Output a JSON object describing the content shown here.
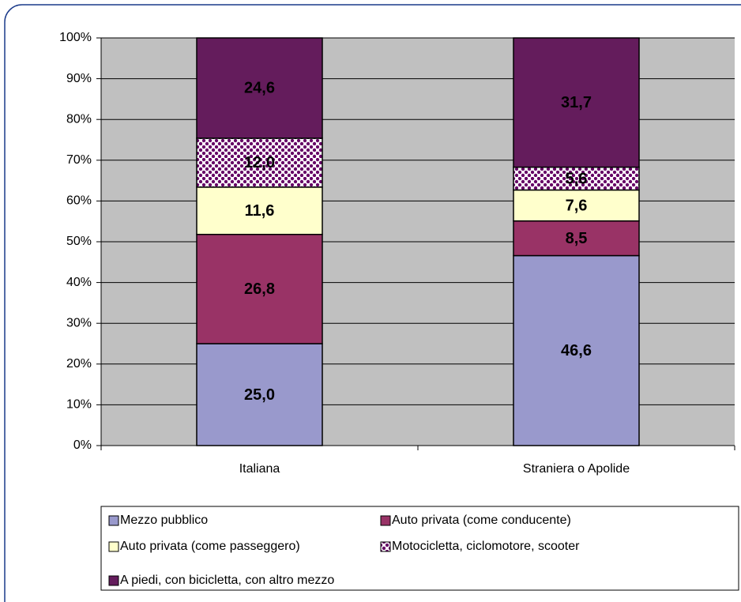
{
  "chart_data": {
    "type": "stacked_bar",
    "categories": [
      "Italiana",
      "Straniera o Apolide"
    ],
    "series": [
      {
        "name": "Mezzo pubblico",
        "color": "#9999cc",
        "values": [
          25.0,
          46.6
        ],
        "value_labels": [
          "25,0",
          "46,6"
        ]
      },
      {
        "name": "Auto privata (come conducente)",
        "color": "#993366",
        "values": [
          26.8,
          8.5
        ],
        "value_labels": [
          "26,8",
          "8,5"
        ]
      },
      {
        "name": "Auto privata (come passeggero)",
        "color": "#ffffcc",
        "values": [
          11.6,
          7.6
        ],
        "value_labels": [
          "11,6",
          "7,6"
        ]
      },
      {
        "name": "Motocicletta, ciclomotore, scooter",
        "color": "#660066",
        "pattern": "dots",
        "values": [
          12.0,
          5.6
        ],
        "value_labels": [
          "12,0",
          "5,6"
        ]
      },
      {
        "name": "A piedi, con bicicletta, con altro mezzo",
        "color": "#641c5c",
        "values": [
          24.6,
          31.7
        ],
        "value_labels": [
          "24,6",
          "31,7"
        ]
      }
    ],
    "ylim": [
      0,
      100
    ],
    "yticks": [
      {
        "value": 0,
        "label": "0%"
      },
      {
        "value": 10,
        "label": "10%"
      },
      {
        "value": 20,
        "label": "20%"
      },
      {
        "value": 30,
        "label": "30%"
      },
      {
        "value": 40,
        "label": "40%"
      },
      {
        "value": 50,
        "label": "50%"
      },
      {
        "value": 60,
        "label": "60%"
      },
      {
        "value": 70,
        "label": "70%"
      },
      {
        "value": 80,
        "label": "80%"
      },
      {
        "value": 90,
        "label": "90%"
      },
      {
        "value": 100,
        "label": "100%"
      }
    ],
    "grid": true,
    "plot_background": "#c0c0c0",
    "legend": "bottom"
  }
}
